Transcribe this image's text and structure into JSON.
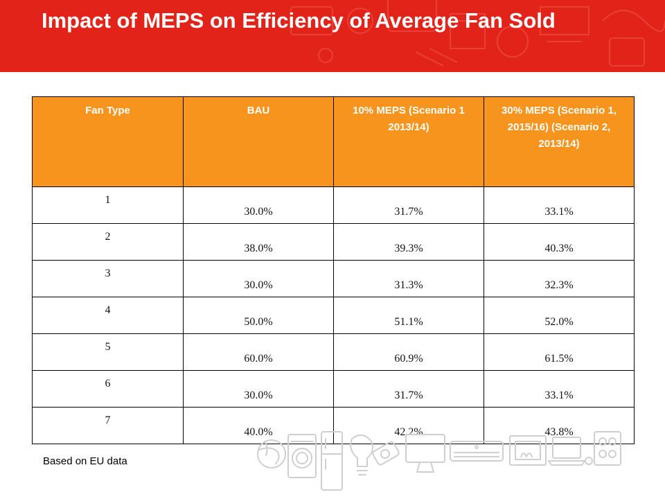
{
  "slide": {
    "title": "Impact of MEPS on Efficiency of Average Fan Sold",
    "footnote": "Based on EU data"
  },
  "table": {
    "headers": [
      "Fan Type",
      "BAU",
      "10% MEPS (Scenario 1 2013/14)",
      "30% MEPS (Scenario 1, 2015/16) (Scenario 2, 2013/14)"
    ],
    "rows": [
      [
        "1",
        "30.0%",
        "31.7%",
        "33.1%"
      ],
      [
        "2",
        "38.0%",
        "39.3%",
        "40.3%"
      ],
      [
        "3",
        "30.0%",
        "31.3%",
        "32.3%"
      ],
      [
        "4",
        "50.0%",
        "51.1%",
        "52.0%"
      ],
      [
        "5",
        "60.0%",
        "60.9%",
        "61.5%"
      ],
      [
        "6",
        "30.0%",
        "31.7%",
        "33.1%"
      ],
      [
        "7",
        "40.0%",
        "42.2%",
        "43.8%"
      ]
    ]
  },
  "colors": {
    "header_band": "#e2231a",
    "table_header": "#f7941d",
    "appliance_line": "#cfcfcf"
  },
  "decorations": {
    "header_pattern": "faint-appliance-outline-pattern",
    "bottom_icons": [
      "globe-icon",
      "washing-machine-icon",
      "refrigerator-icon",
      "light-bulb-icon",
      "battery-icon",
      "monitor-icon",
      "air-conditioner-icon",
      "fireplace-heater-icon",
      "laptop-icon",
      "stove-icon"
    ]
  }
}
